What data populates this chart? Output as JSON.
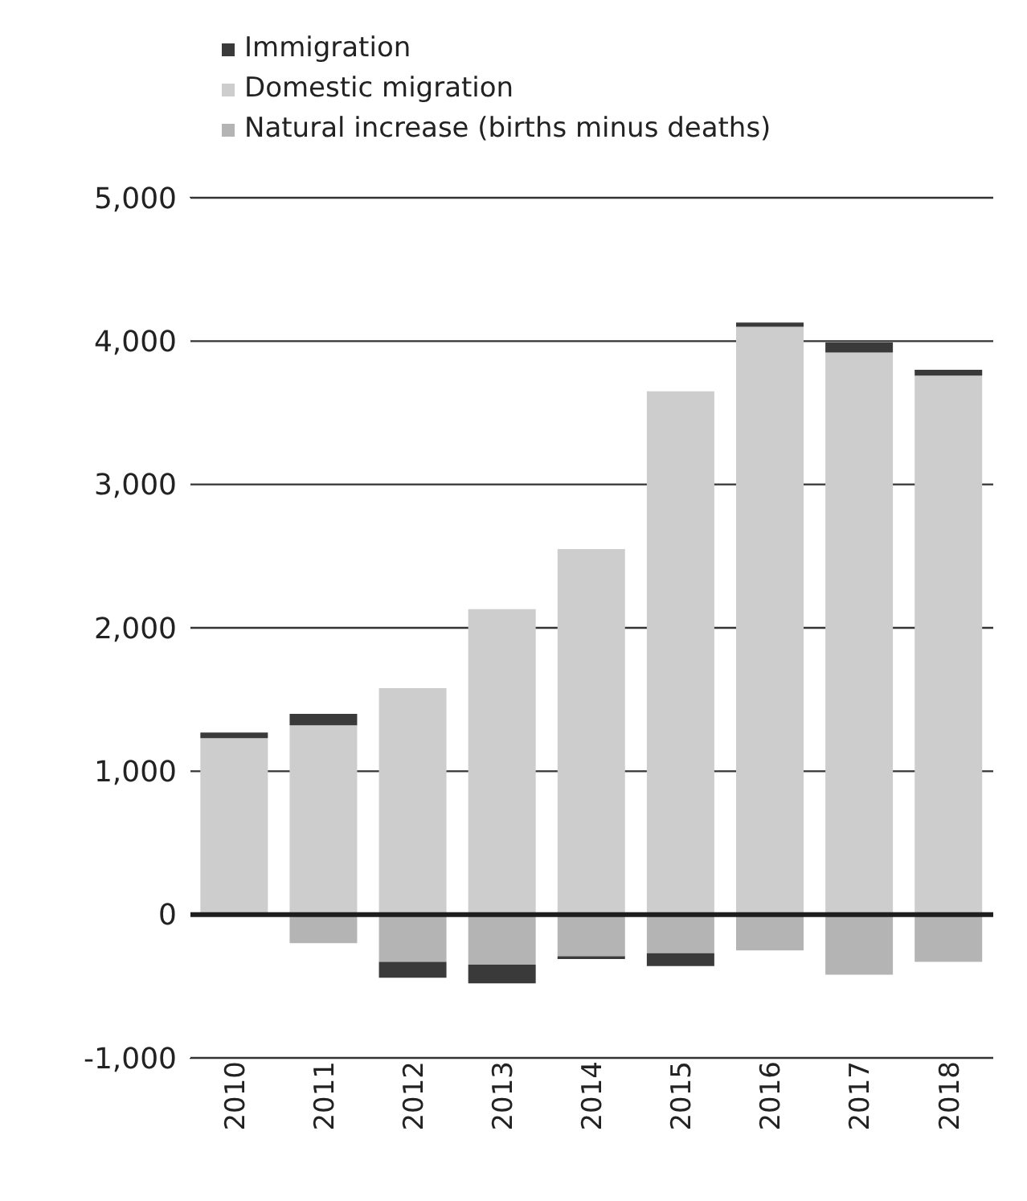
{
  "chart_data": {
    "type": "bar",
    "stacked": true,
    "categories": [
      "2010",
      "2011",
      "2012",
      "2013",
      "2014",
      "2015",
      "2016",
      "2017",
      "2018"
    ],
    "series": [
      {
        "name": "Natural increase (births minus deaths)",
        "color": "#b4b4b4",
        "values": [
          0,
          -200,
          -330,
          -350,
          -290,
          -270,
          -250,
          -420,
          -330
        ]
      },
      {
        "name": "Domestic migration",
        "color": "#cdcdcd",
        "values": [
          1230,
          1320,
          1580,
          2130,
          2550,
          3650,
          4100,
          3920,
          3760
        ]
      },
      {
        "name": "Immigration",
        "color": "#3a3a3a",
        "values": [
          40,
          80,
          -110,
          -130,
          -20,
          -90,
          30,
          70,
          40
        ]
      }
    ],
    "ylim": [
      -1000,
      5000
    ],
    "yticks": [
      {
        "value": -1000,
        "label": "-1,000"
      },
      0,
      {
        "value": 1000,
        "label": "1,000"
      },
      {
        "value": 2000,
        "label": "2,000"
      },
      {
        "value": 3000,
        "label": "3,000"
      },
      {
        "value": 4000,
        "label": "4,000"
      },
      {
        "value": 5000,
        "label": "5,000"
      }
    ],
    "grid": "y",
    "legend": "top left",
    "ref_lines": [
      {
        "axis": "y",
        "value": 0,
        "color": "#1e1e1e"
      }
    ]
  }
}
